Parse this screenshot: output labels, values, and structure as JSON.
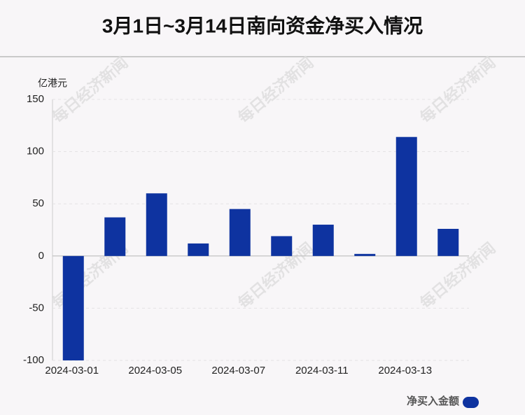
{
  "chart_data": {
    "type": "bar",
    "title": "3月1日~3月14日南向资金净买入情况",
    "y_label": "亿港元",
    "watermark": "每日经济新闻",
    "categories": [
      "2024-03-01",
      null,
      "2024-03-05",
      null,
      "2024-03-07",
      null,
      "2024-03-11",
      null,
      "2024-03-13",
      null
    ],
    "series": [
      {
        "name": "净买入金额",
        "color": "#0e33a0",
        "values": [
          -100,
          37,
          60,
          12,
          45,
          19,
          30,
          2,
          114,
          26
        ]
      }
    ],
    "ylim": [
      -100,
      150
    ],
    "yticks": [
      -100,
      -50,
      0,
      50,
      100,
      150
    ],
    "grid": true,
    "legend": "bottom-right"
  }
}
